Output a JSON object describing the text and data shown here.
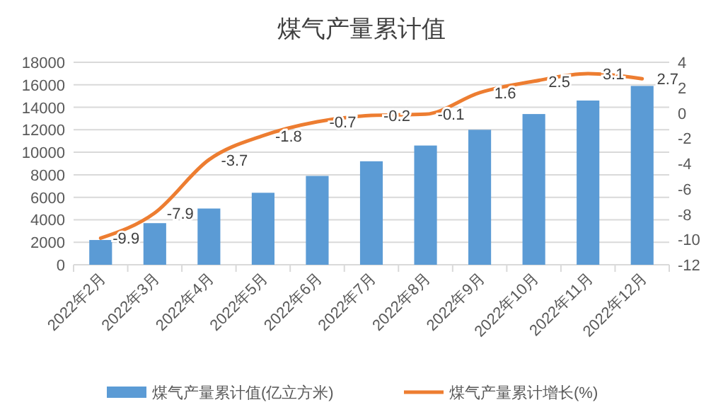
{
  "chart_data": {
    "type": "bar",
    "title": "煤气产量累计值",
    "categories": [
      "2022年2月",
      "2022年3月",
      "2022年4月",
      "2022年5月",
      "2022年6月",
      "2022年7月",
      "2022年8月",
      "2022年9月",
      "2022年10月",
      "2022年11月",
      "2022年12月"
    ],
    "series": [
      {
        "name": "煤气产量累计值(亿立方米)",
        "color": "#5b9bd5",
        "values": [
          2200,
          3700,
          5000,
          6400,
          7900,
          9200,
          10600,
          12000,
          13400,
          14600,
          15900
        ]
      },
      {
        "name": "煤气产量累计增长(%)",
        "type": "line",
        "axis": "y2",
        "color": "#ed7d31",
        "values": [
          -9.9,
          -7.9,
          -3.7,
          -1.8,
          -0.7,
          -0.2,
          -0.1,
          1.6,
          2.5,
          3.1,
          2.7
        ],
        "data_labels": true
      }
    ],
    "ylim": [
      0,
      18000
    ],
    "yticks": [
      0,
      2000,
      4000,
      6000,
      8000,
      10000,
      12000,
      14000,
      16000,
      18000
    ],
    "y2lim": [
      -12,
      4
    ],
    "y2ticks": [
      -12,
      -10,
      -8,
      -6,
      -4,
      -2,
      0,
      2,
      4
    ],
    "grid": "y",
    "legend": "bottom",
    "marker": "none",
    "line_style": "solid"
  }
}
